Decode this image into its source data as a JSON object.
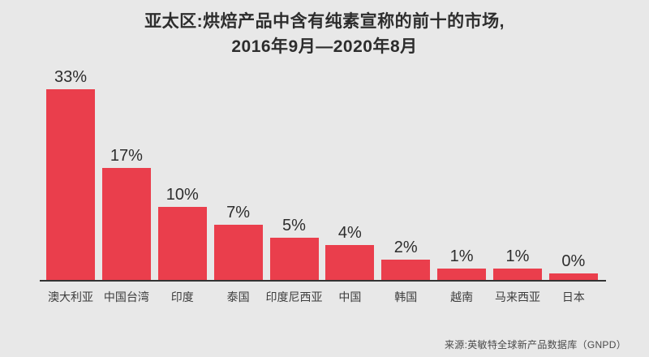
{
  "title": {
    "line1": "亚太区:烘焙产品中含有纯素宣称的前十的市场,",
    "line2": "2016年9月—2020年8月"
  },
  "source": "来源:英敏特全球新产品数据库（GNPD）",
  "colors": {
    "bar": "#ea3e4c",
    "background": "#e8e8e8",
    "axis": "#333333",
    "text": "#2d2d2d",
    "category_text": "#3d3d3d",
    "source_text": "#4a4a4a"
  },
  "chart_data": {
    "type": "bar",
    "title": "亚太区:烘焙产品中含有纯素宣称的前十的市场, 2016年9月—2020年8月",
    "categories": [
      "澳大利亚",
      "中国台湾",
      "印度",
      "泰国",
      "印度尼西亚",
      "中国",
      "韩国",
      "越南",
      "马来西亚",
      "日本"
    ],
    "values": [
      33,
      17,
      10,
      7,
      5,
      4,
      2,
      1,
      1,
      0
    ],
    "value_labels": [
      "33%",
      "17%",
      "10%",
      "7%",
      "5%",
      "4%",
      "2%",
      "1%",
      "1%",
      "0%"
    ],
    "unit": "%",
    "xlabel": "",
    "ylabel": "",
    "ylim": [
      0,
      35
    ],
    "grid": false,
    "legend": "none",
    "y_axis_shown": false,
    "data_labels_position": "above-bars",
    "source": "来源:英敏特全球新产品数据库（GNPD）"
  }
}
